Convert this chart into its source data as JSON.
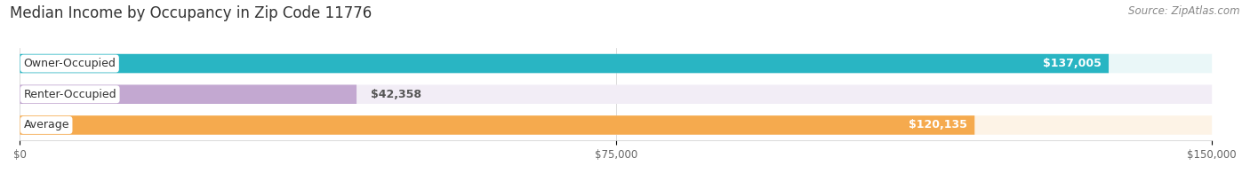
{
  "title": "Median Income by Occupancy in Zip Code 11776",
  "source": "Source: ZipAtlas.com",
  "categories": [
    "Owner-Occupied",
    "Renter-Occupied",
    "Average"
  ],
  "values": [
    137005,
    42358,
    120135
  ],
  "labels": [
    "$137,005",
    "$42,358",
    "$120,135"
  ],
  "bar_colors": [
    "#29b5c3",
    "#c3a8d1",
    "#f5aa4e"
  ],
  "bar_bg_colors": [
    "#eaf7f8",
    "#f2edf6",
    "#fdf3e6"
  ],
  "xlim": [
    0,
    150000
  ],
  "xticks": [
    0,
    75000,
    150000
  ],
  "xticklabels": [
    "$0",
    "$75,000",
    "$150,000"
  ],
  "title_fontsize": 12,
  "source_fontsize": 8.5,
  "label_fontsize": 9,
  "cat_fontsize": 9,
  "bar_height": 0.62,
  "background_color": "#ffffff",
  "label_threshold": 0.35
}
